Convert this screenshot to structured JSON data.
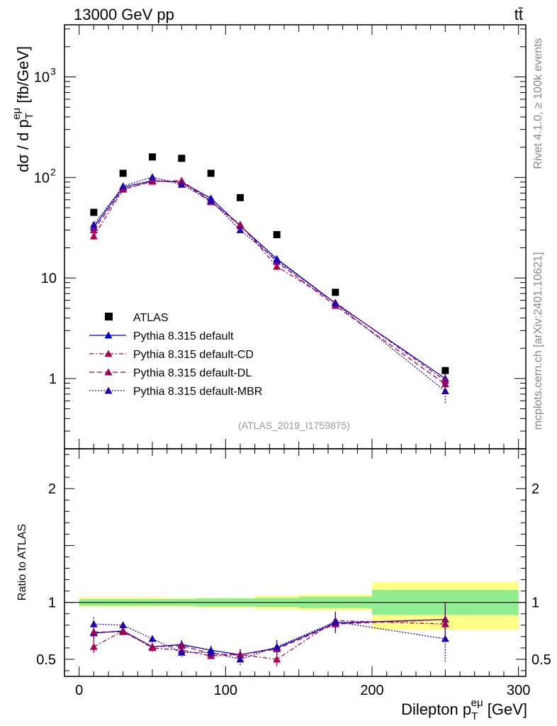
{
  "header": {
    "energy_label": "13000 GeV pp",
    "process_label": "tt̄"
  },
  "side_labels": {
    "rivet": "Rivet 4.1.0, ≥ 100k events",
    "mcplots": "mcplots.cern.ch [arXiv:2401.10621]"
  },
  "analysis_id": "(ATLAS_2019_I1759875)",
  "colors": {
    "data": "#000000",
    "default": "#0000cc",
    "cd": "#b0004a",
    "dl": "#a0005a",
    "mbr": "#2000b0",
    "band_inner": "#90ee90",
    "band_outer": "#ffff88"
  },
  "chart_data": [
    {
      "type": "scatter",
      "panel": "main",
      "ylabel_parts": {
        "prefix": "dσ / d p",
        "sub": "T",
        "sup": "eμ",
        "suffix": " [fb/GeV]"
      },
      "yscale": "log",
      "ylim": [
        0.2,
        3300
      ],
      "xlim": [
        -10,
        305
      ],
      "yticks": [
        {
          "value": 1,
          "label": "1"
        },
        {
          "value": 10,
          "label": "10"
        },
        {
          "value": 100,
          "label": "10",
          "exp": "2"
        },
        {
          "value": 1000,
          "label": "10",
          "exp": "3"
        }
      ],
      "legend_position": "lower-left",
      "bins": [
        [
          0,
          20
        ],
        [
          20,
          40
        ],
        [
          40,
          60
        ],
        [
          60,
          80
        ],
        [
          80,
          100
        ],
        [
          100,
          120
        ],
        [
          120,
          150
        ],
        [
          150,
          200
        ],
        [
          200,
          300
        ]
      ],
      "x": [
        10,
        30,
        50,
        70,
        90,
        110,
        135,
        175,
        250
      ],
      "series": [
        {
          "name": "ATLAS",
          "key": "data",
          "style": "square",
          "values": [
            45,
            110,
            160,
            155,
            110,
            63,
            27,
            7.2,
            1.2
          ]
        },
        {
          "name": "Pythia 8.315 default",
          "key": "default",
          "style": "solid",
          "values": [
            32,
            80,
            93,
            90,
            62,
            33,
            15.5,
            5.6,
            1.0
          ],
          "errors": [
            2,
            3,
            3,
            3,
            2,
            1.5,
            1,
            0.4,
            0.15
          ]
        },
        {
          "name": "Pythia 8.315 default-CD",
          "key": "cd",
          "style": "dashdot",
          "values": [
            26,
            76,
            92,
            90,
            57,
            34,
            13.0,
            5.7,
            0.95
          ],
          "errors": [
            2,
            3,
            3,
            3,
            2,
            1.5,
            1,
            0.4,
            0.15
          ]
        },
        {
          "name": "Pythia 8.315 default-DL",
          "key": "dl",
          "style": "dashed",
          "values": [
            30,
            77,
            91,
            93,
            58,
            33,
            14.5,
            5.3,
            0.88
          ],
          "errors": [
            2,
            3,
            3,
            3,
            2,
            1.5,
            1,
            0.4,
            0.15
          ]
        },
        {
          "name": "Pythia 8.315 default-MBR",
          "key": "mbr",
          "style": "dotted",
          "values": [
            34,
            82,
            101,
            85,
            59,
            30,
            15.0,
            5.6,
            0.75
          ],
          "errors": [
            2,
            3,
            3,
            3,
            2,
            1.5,
            1,
            0.4,
            0.18
          ]
        }
      ]
    },
    {
      "type": "scatter",
      "panel": "ratio",
      "ylabel": "Ratio to ATLAS",
      "yscale": "linear",
      "ylim": [
        0.35,
        2.35
      ],
      "xlim": [
        -10,
        305
      ],
      "xlabel_parts": {
        "prefix": "Dilepton p",
        "sub": "T",
        "sup": "eμ",
        "suffix": "  [GeV]"
      },
      "xticks": [
        {
          "value": 0,
          "label": "0"
        },
        {
          "value": 100,
          "label": "100"
        },
        {
          "value": 200,
          "label": "200"
        },
        {
          "value": 300,
          "label": "300"
        }
      ],
      "yticks": [
        {
          "value": 0.5,
          "label": "0.5"
        },
        {
          "value": 1,
          "label": "1"
        },
        {
          "value": 2,
          "label": "2"
        }
      ],
      "bands": {
        "edges": [
          0,
          20,
          40,
          60,
          80,
          100,
          120,
          150,
          200,
          300
        ],
        "inner": [
          [
            0.97,
            1.03
          ],
          [
            0.97,
            1.03
          ],
          [
            0.97,
            1.03
          ],
          [
            0.97,
            1.03
          ],
          [
            0.965,
            1.035
          ],
          [
            0.965,
            1.035
          ],
          [
            0.96,
            1.04
          ],
          [
            0.95,
            1.05
          ],
          [
            0.89,
            1.11
          ]
        ],
        "outer": [
          [
            0.96,
            1.045
          ],
          [
            0.96,
            1.045
          ],
          [
            0.96,
            1.045
          ],
          [
            0.96,
            1.04
          ],
          [
            0.955,
            1.04
          ],
          [
            0.955,
            1.04
          ],
          [
            0.94,
            1.06
          ],
          [
            0.93,
            1.07
          ],
          [
            0.76,
            1.18
          ]
        ]
      },
      "x": [
        10,
        30,
        50,
        70,
        90,
        110,
        135,
        175,
        250
      ],
      "series": [
        {
          "name": "Pythia 8.315 default",
          "key": "default",
          "style": "solid",
          "values": [
            0.73,
            0.75,
            0.61,
            0.63,
            0.58,
            0.54,
            0.6,
            0.82,
            0.85
          ],
          "errors": [
            0.05,
            0.03,
            0.03,
            0.04,
            0.04,
            0.05,
            0.06,
            0.08,
            0.15
          ]
        },
        {
          "name": "Pythia 8.315 default-CD",
          "key": "cd",
          "style": "dashdot",
          "values": [
            0.61,
            0.75,
            0.6,
            0.58,
            0.53,
            0.54,
            0.5,
            0.84,
            0.81
          ],
          "errors": [
            0.07,
            0.03,
            0.03,
            0.04,
            0.04,
            0.05,
            0.06,
            0.08,
            0.12
          ]
        },
        {
          "name": "Pythia 8.315 default-DL",
          "key": "dl",
          "style": "dashed",
          "values": [
            0.74,
            0.74,
            0.61,
            0.62,
            0.55,
            0.54,
            0.59,
            0.81,
            0.85
          ],
          "errors": [
            0.05,
            0.03,
            0.03,
            0.04,
            0.04,
            0.05,
            0.06,
            0.08,
            0.15
          ]
        },
        {
          "name": "Pythia 8.315 default-MBR",
          "key": "mbr",
          "style": "dotted",
          "values": [
            0.81,
            0.8,
            0.68,
            0.56,
            0.56,
            0.5,
            0.61,
            0.83,
            0.68
          ],
          "errors": [
            0.06,
            0.03,
            0.03,
            0.04,
            0.04,
            0.06,
            0.06,
            0.08,
            0.21
          ]
        }
      ]
    }
  ]
}
